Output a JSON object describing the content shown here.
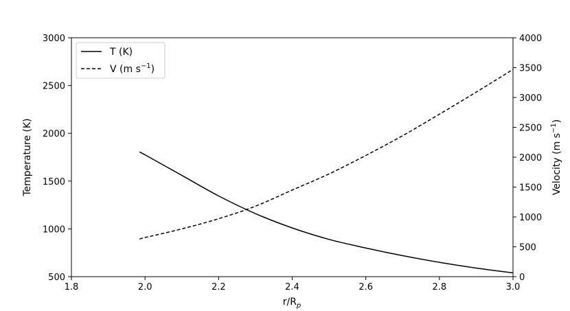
{
  "chart_data": {
    "type": "line",
    "title": "",
    "xlabel": {
      "base": "r/R",
      "sub": "p"
    },
    "ylabel_left": "Temperature (K)",
    "ylabel_right": {
      "base": "Velocity (m s",
      "sup": "−1",
      "close": ")"
    },
    "xlim": [
      1.8,
      3.0
    ],
    "ylim_left": [
      500,
      3000
    ],
    "ylim_right": [
      0,
      4000
    ],
    "x_ticks": [
      "1.8",
      "2.0",
      "2.2",
      "2.4",
      "2.6",
      "2.8",
      "3.0"
    ],
    "y_left_ticks": [
      "500",
      "1000",
      "1500",
      "2000",
      "2500",
      "3000"
    ],
    "y_right_ticks": [
      "0",
      "500",
      "1000",
      "1500",
      "2000",
      "2500",
      "3000",
      "3500",
      "4000"
    ],
    "legend_position": "top-left",
    "grid": false,
    "series": [
      {
        "name": "T (K)",
        "axis": "left",
        "style": "solid",
        "color": "#000000",
        "points": [
          [
            1.985,
            1805
          ],
          [
            2.0,
            1775
          ],
          [
            2.1,
            1560
          ],
          [
            2.2,
            1345
          ],
          [
            2.3,
            1160
          ],
          [
            2.4,
            1010
          ],
          [
            2.5,
            890
          ],
          [
            2.6,
            800
          ],
          [
            2.7,
            720
          ],
          [
            2.8,
            650
          ],
          [
            2.9,
            590
          ],
          [
            3.0,
            540
          ]
        ]
      },
      {
        "name": {
          "base": "V (m s",
          "sup": "−1",
          "close": ")"
        },
        "axis": "right",
        "style": "dashed",
        "color": "#000000",
        "points": [
          [
            1.985,
            630
          ],
          [
            2.0,
            655
          ],
          [
            2.1,
            800
          ],
          [
            2.2,
            970
          ],
          [
            2.3,
            1180
          ],
          [
            2.4,
            1450
          ],
          [
            2.5,
            1720
          ],
          [
            2.6,
            2030
          ],
          [
            2.7,
            2360
          ],
          [
            2.8,
            2720
          ],
          [
            2.9,
            3090
          ],
          [
            3.0,
            3470
          ]
        ]
      }
    ]
  }
}
